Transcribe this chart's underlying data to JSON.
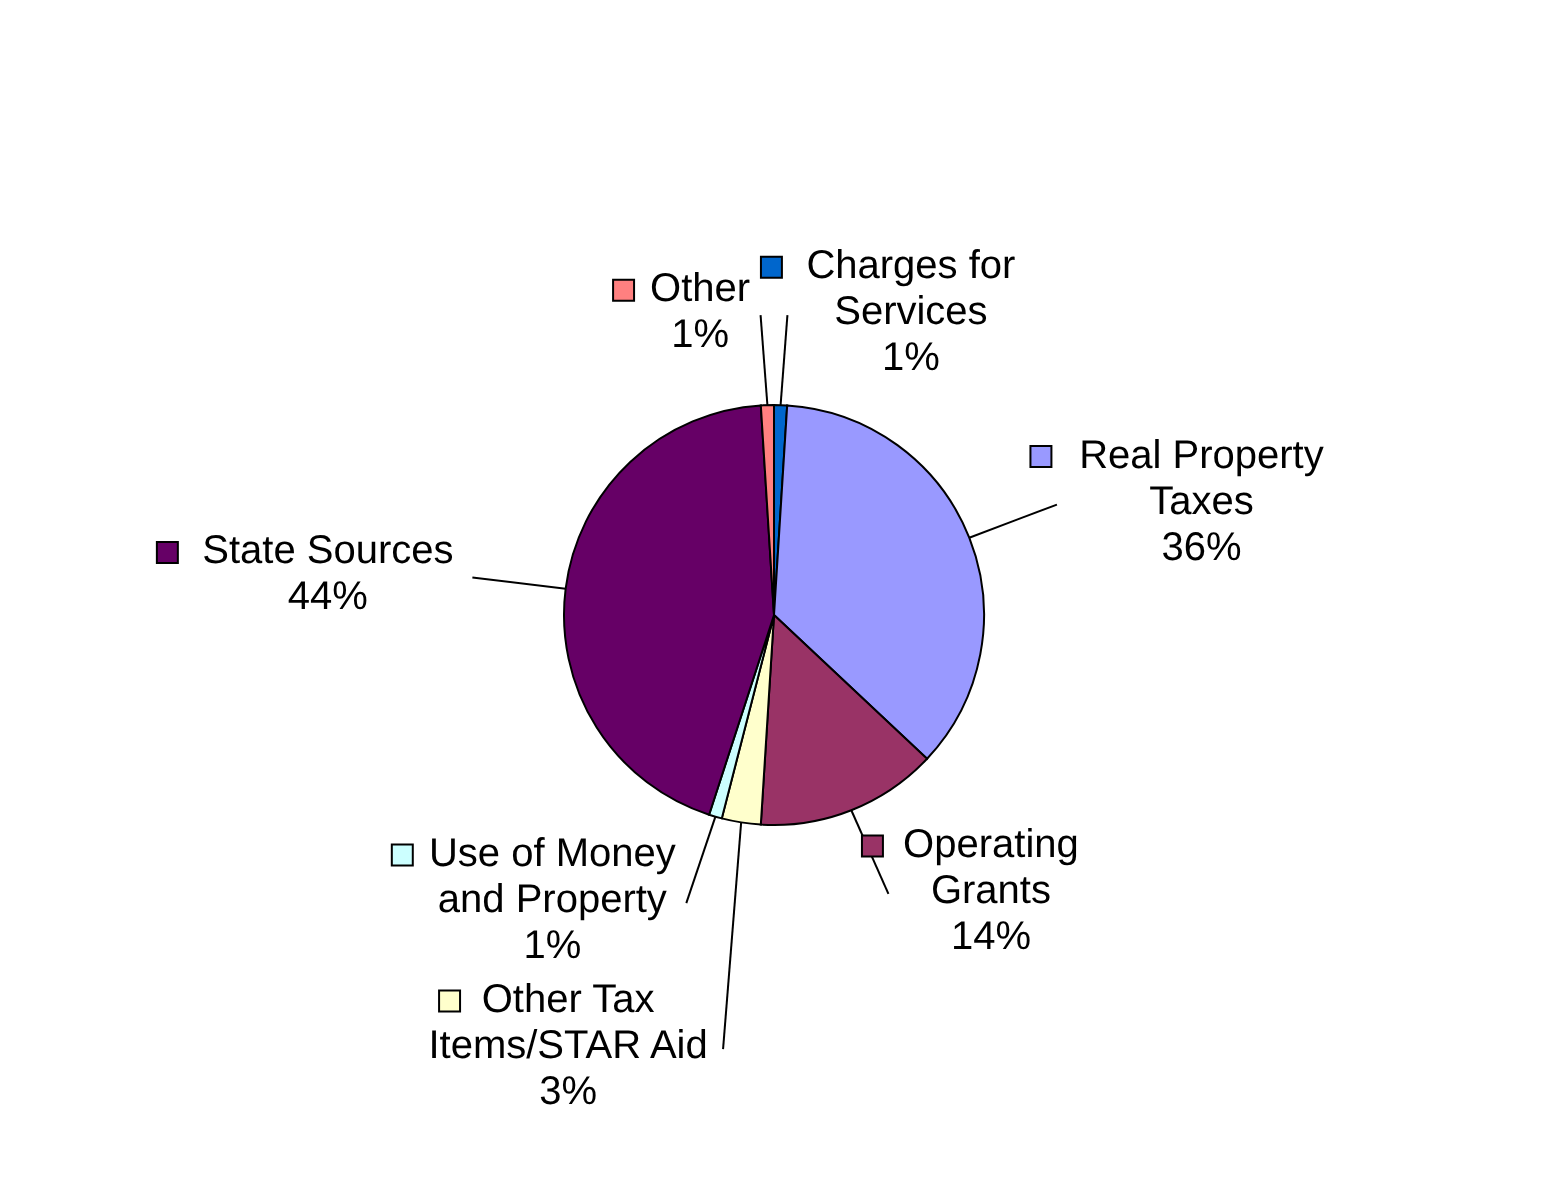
{
  "chart_data": {
    "type": "pie",
    "categories": [
      "Charges for Services",
      "Real Property Taxes",
      "Operating Grants",
      "Other Tax Items/STAR Aid",
      "Use of Money and Property",
      "State Sources",
      "Other"
    ],
    "values": [
      1,
      36,
      14,
      3,
      1,
      44,
      1
    ],
    "value_labels": [
      "1%",
      "36%",
      "14%",
      "3%",
      "1%",
      "44%",
      "1%"
    ],
    "colors": [
      "#0066cc",
      "#9999ff",
      "#993366",
      "#ffffcc",
      "#ccffff",
      "#660066",
      "#ff8080"
    ],
    "legend": "bottom left"
  }
}
